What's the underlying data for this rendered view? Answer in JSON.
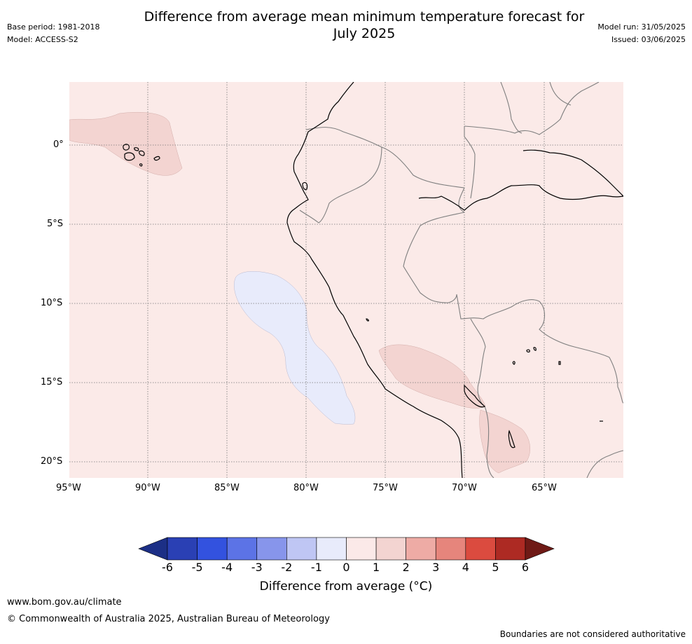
{
  "title_line1": "Difference from average mean minimum temperature forecast for",
  "title_line2": "July 2025",
  "base_period": "Base period: 1981-2018",
  "model": "Model: ACCESS-S2",
  "model_run": "Model run: 31/05/2025",
  "issued": "Issued: 03/06/2025",
  "longitude_labels": [
    "95°W",
    "90°W",
    "85°W",
    "80°W",
    "75°W",
    "70°W",
    "65°W"
  ],
  "latitude_labels": [
    "0°",
    "5°S",
    "10°S",
    "15°S",
    "20°S"
  ],
  "colorbar": {
    "title": "Difference from average (°C)",
    "ticks": [
      "-6",
      "-5",
      "-4",
      "-3",
      "-2",
      "-1",
      "0",
      "1",
      "2",
      "3",
      "4",
      "5",
      "6"
    ],
    "colors": [
      "#1c2f86",
      "#2a40b4",
      "#3352df",
      "#5c73e6",
      "#8795eb",
      "#bfc6f4",
      "#e8ebfb",
      "#fbe9e8",
      "#f3d4d1",
      "#eeaba5",
      "#e6857c",
      "#db4b3f",
      "#ad2a23",
      "#6f1a16"
    ]
  },
  "map": {
    "background_color": "#fbeae8",
    "warm_anomaly_color": "#f3d4d1",
    "cool_anomaly_color": "#e8ebfb"
  },
  "footer": {
    "url": "www.bom.gov.au/climate",
    "copyright": "© Commonwealth of Australia 2025, Australian Bureau of Meteorology",
    "disclaimer": "Boundaries are not considered authoritative"
  }
}
